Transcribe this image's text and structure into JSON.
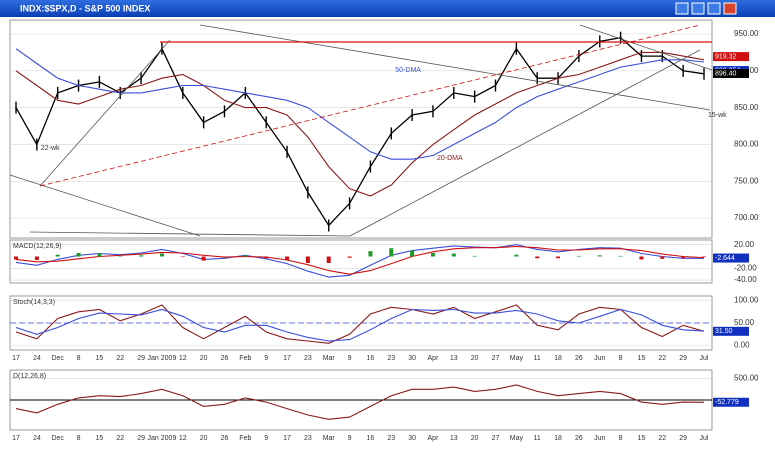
{
  "window": {
    "title": "INDX:$SPX,D - S&P 500 INDEX"
  },
  "chart_data": [
    {
      "type": "line",
      "ylim": [
        673,
        969
      ],
      "yticks": [
        {
          "value": 950,
          "label": "950.00"
        },
        {
          "value": 900,
          "label": "900.00"
        },
        {
          "value": 850,
          "label": "850.00"
        },
        {
          "value": 800,
          "label": "800.00"
        },
        {
          "value": 750,
          "label": "750.00"
        },
        {
          "value": 700,
          "label": "700.00"
        }
      ],
      "series": [
        {
          "name": "SPX",
          "color": "#000000",
          "values": [
            850,
            800,
            870,
            880,
            885,
            870,
            890,
            930,
            870,
            830,
            845,
            870,
            830,
            790,
            735,
            690,
            720,
            770,
            815,
            840,
            845,
            870,
            865,
            880,
            930,
            890,
            890,
            920,
            940,
            945,
            920,
            920,
            900,
            896
          ]
        },
        {
          "name": "20-DMA",
          "color": "#8b1a1a",
          "values": [
            900,
            880,
            860,
            855,
            865,
            875,
            880,
            890,
            895,
            880,
            860,
            850,
            850,
            840,
            810,
            770,
            740,
            730,
            745,
            775,
            800,
            820,
            840,
            855,
            870,
            880,
            890,
            895,
            905,
            915,
            925,
            925,
            920,
            915
          ]
        },
        {
          "name": "50-DMA",
          "color": "#3a4fd8",
          "values": [
            930,
            910,
            890,
            880,
            875,
            870,
            870,
            875,
            880,
            880,
            875,
            870,
            865,
            860,
            850,
            830,
            810,
            790,
            780,
            780,
            785,
            800,
            815,
            830,
            850,
            865,
            875,
            885,
            895,
            905,
            910,
            915,
            915,
            912
          ]
        }
      ],
      "annotations": [
        "22-wk",
        "50-DMA",
        "20-DMA",
        "15-wk"
      ],
      "last_labels": [
        {
          "value": 919.32,
          "label": "919.32",
          "color": "#d01010"
        },
        {
          "value": 900.354,
          "label": "900.354",
          "color": "#1030c0"
        },
        {
          "value": 896.4,
          "label": "896.40",
          "color": "#000000"
        }
      ]
    },
    {
      "type": "line",
      "title": "MACD(12,26,9)",
      "ylim": [
        -45,
        28
      ],
      "yticks": [
        {
          "value": 20,
          "label": "20.00"
        },
        {
          "value": -20,
          "label": "-20.00"
        },
        {
          "value": -40,
          "label": "-40.00"
        }
      ],
      "series": [
        {
          "name": "MACD",
          "color": "#3a4fd8",
          "values": [
            -10,
            -15,
            -5,
            2,
            5,
            3,
            6,
            12,
            5,
            -5,
            -3,
            2,
            -4,
            -12,
            -25,
            -35,
            -32,
            -15,
            2,
            10,
            14,
            18,
            16,
            15,
            20,
            12,
            8,
            12,
            15,
            14,
            5,
            0,
            -3,
            -3
          ]
        },
        {
          "name": "Signal",
          "color": "#d01010",
          "values": [
            -5,
            -9,
            -8,
            -4,
            0,
            2,
            4,
            7,
            6,
            2,
            -1,
            0,
            -1,
            -6,
            -14,
            -24,
            -30,
            -24,
            -12,
            0,
            8,
            13,
            15,
            15,
            17,
            15,
            11,
            11,
            13,
            13,
            10,
            4,
            0,
            -2
          ]
        },
        {
          "name": "Histogram",
          "type": "bar",
          "color": "#1f9a2a",
          "negative_color": "#d01010",
          "values": [
            -5,
            -6,
            3,
            6,
            5,
            1,
            2,
            5,
            -1,
            -7,
            -2,
            2,
            -3,
            -6,
            -11,
            -11,
            -2,
            9,
            14,
            10,
            6,
            5,
            1,
            0,
            3,
            -3,
            -3,
            1,
            2,
            1,
            -5,
            -4,
            -3,
            -1
          ]
        }
      ],
      "last_labels": [
        {
          "value": -2.644,
          "label": "-2.644",
          "color": "#1030c0"
        }
      ]
    },
    {
      "type": "line",
      "title": "Stoch(14,3,3)",
      "ylim": [
        -10,
        110
      ],
      "yticks": [
        {
          "value": 100,
          "label": "100.00"
        },
        {
          "value": 50,
          "label": "50.00"
        },
        {
          "value": 0,
          "label": "0.00"
        }
      ],
      "series": [
        {
          "name": "%K",
          "color": "#8b1a1a",
          "values": [
            30,
            15,
            60,
            75,
            80,
            55,
            70,
            90,
            40,
            15,
            40,
            65,
            30,
            15,
            10,
            5,
            25,
            70,
            85,
            80,
            70,
            85,
            60,
            75,
            90,
            45,
            35,
            70,
            85,
            80,
            40,
            20,
            45,
            31.5
          ]
        },
        {
          "name": "%D",
          "color": "#3a4fd8",
          "values": [
            40,
            25,
            40,
            60,
            72,
            70,
            68,
            80,
            65,
            40,
            30,
            45,
            45,
            30,
            18,
            10,
            13,
            35,
            60,
            80,
            78,
            80,
            72,
            72,
            78,
            70,
            55,
            50,
            65,
            80,
            68,
            45,
            35,
            32
          ]
        }
      ],
      "last_labels": [
        {
          "value": 31.5,
          "label": "31.50",
          "color": "#1030c0"
        }
      ],
      "categories": [
        "17",
        "24",
        "Dec",
        "8",
        "15",
        "22",
        "29",
        "Jan 2009",
        "12",
        "20",
        "26",
        "Feb",
        "9",
        "17",
        "23",
        "Mar",
        "9",
        "16",
        "23",
        "30",
        "Apr",
        "13",
        "20",
        "27",
        "May",
        "11",
        "18",
        "26",
        "Jun",
        "8",
        "15",
        "22",
        "29",
        "Jul"
      ]
    },
    {
      "type": "line",
      "title": "D(12,26,8)",
      "ylim": [
        -700,
        700
      ],
      "yticks": [
        {
          "value": 500,
          "label": "500.00"
        }
      ],
      "series": [
        {
          "name": "D",
          "color": "#8b1a1a",
          "values": [
            -200,
            -300,
            -100,
            50,
            100,
            80,
            150,
            250,
            100,
            -150,
            -100,
            50,
            -50,
            -200,
            -350,
            -450,
            -400,
            -150,
            100,
            250,
            250,
            300,
            200,
            250,
            350,
            200,
            100,
            150,
            200,
            150,
            -50,
            -100,
            -50,
            -52.779
          ]
        }
      ],
      "last_labels": [
        {
          "value": -52.779,
          "label": "-52.779",
          "color": "#1030c0"
        }
      ],
      "categories": [
        "17",
        "24",
        "Dec",
        "8",
        "15",
        "22",
        "29",
        "Jan 2009",
        "12",
        "20",
        "26",
        "Feb",
        "9",
        "17",
        "23",
        "Mar",
        "9",
        "16",
        "23",
        "30",
        "Apr",
        "13",
        "20",
        "27",
        "May",
        "11",
        "18",
        "26",
        "Jun",
        "8",
        "15",
        "22",
        "29",
        "Jul"
      ]
    }
  ]
}
